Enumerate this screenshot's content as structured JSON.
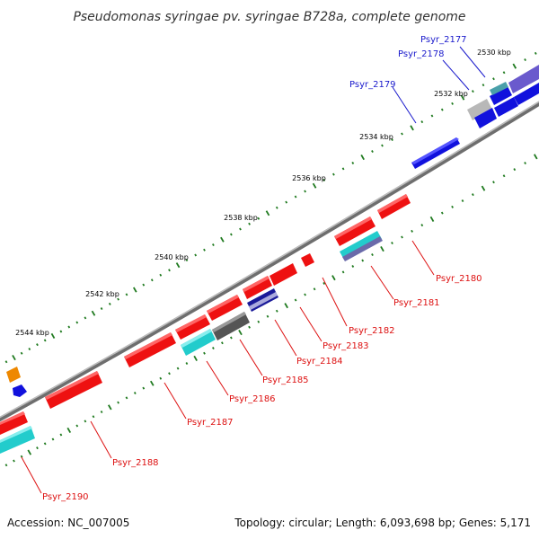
{
  "title": "Pseudomonas syringae pv. syringae B728a, complete genome",
  "footer": {
    "accession": "Accession: NC_007005",
    "topology": "Topology: circular; Length: 6,093,698 bp; Genes: 5,171"
  },
  "colors": {
    "backbone": "#8a8a8a",
    "tick": "#1f7a1f",
    "forward_label": "#1a1acc",
    "reverse_label": "#dd1111",
    "red_gene": "#ee1111",
    "blue_gene": "#1111dd",
    "cyan_gene": "#22cccc",
    "gray_gene": "#777777",
    "purple_gene": "#7060cc",
    "orange_gene": "#ee8800"
  },
  "ticks": [
    {
      "label": "2530 kbp"
    },
    {
      "label": "2532 kbp"
    },
    {
      "label": "2534 kbp"
    },
    {
      "label": "2536 kbp"
    },
    {
      "label": "2538 kbp"
    },
    {
      "label": "2540 kbp"
    },
    {
      "label": "2542 kbp"
    },
    {
      "label": "2544 kbp"
    }
  ],
  "genes": [
    {
      "label": "Psyr_2177",
      "strand": "forward"
    },
    {
      "label": "Psyr_2178",
      "strand": "forward"
    },
    {
      "label": "Psyr_2179",
      "strand": "forward"
    },
    {
      "label": "Psyr_2180",
      "strand": "reverse"
    },
    {
      "label": "Psyr_2181",
      "strand": "reverse"
    },
    {
      "label": "Psyr_2182",
      "strand": "reverse"
    },
    {
      "label": "Psyr_2183",
      "strand": "reverse"
    },
    {
      "label": "Psyr_2184",
      "strand": "reverse"
    },
    {
      "label": "Psyr_2185",
      "strand": "reverse"
    },
    {
      "label": "Psyr_2186",
      "strand": "reverse"
    },
    {
      "label": "Psyr_2187",
      "strand": "reverse"
    },
    {
      "label": "Psyr_2188",
      "strand": "reverse"
    },
    {
      "label": "Psyr_2190",
      "strand": "reverse"
    }
  ]
}
